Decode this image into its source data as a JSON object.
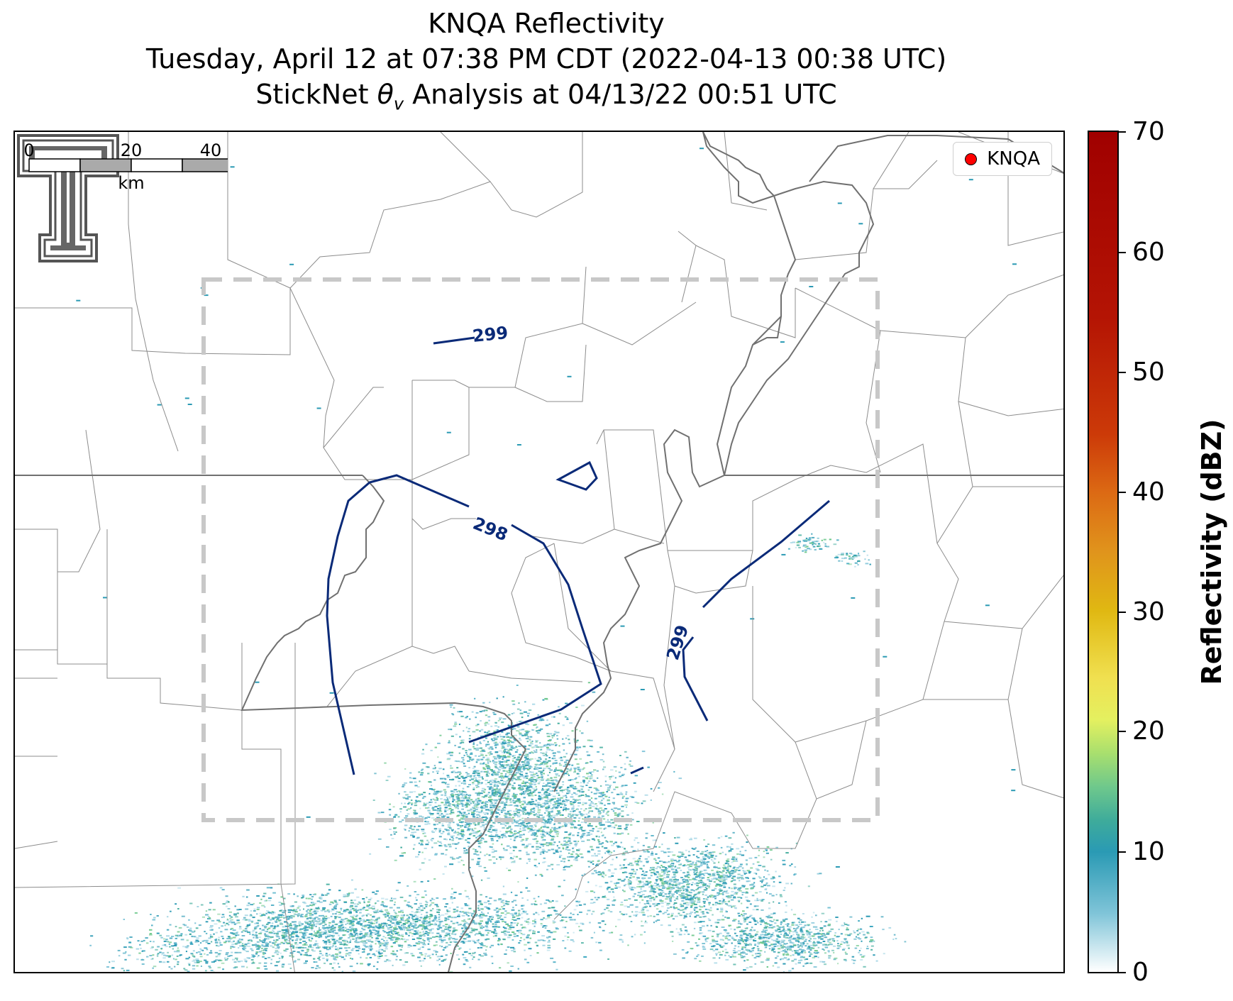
{
  "title": {
    "line1": "KNQA Reflectivity",
    "line2": "Tuesday, April 12 at 07:38 PM CDT (2022-04-13 00:38 UTC)",
    "line3_prefix": "StickNet ",
    "line3_symbol": "θ",
    "line3_subscript": "v",
    "line3_suffix": " Analysis at 04/13/22 00:51 UTC"
  },
  "legend": {
    "label": "KNQA",
    "marker_color": "#ff0000"
  },
  "contours": {
    "color": "#0a2a78",
    "labels": [
      "299",
      "298",
      "299"
    ]
  },
  "analysis_box": {
    "style": "dashed",
    "color": "#c8c8c8"
  },
  "scale_bar": {
    "ticks": [
      "0",
      "20",
      "40"
    ],
    "unit": "km"
  },
  "colorbar": {
    "title": "Reflectivity (dBZ)",
    "min": 0,
    "max": 70,
    "ticks": [
      "0",
      "10",
      "20",
      "30",
      "40",
      "50",
      "60",
      "70"
    ]
  },
  "logo": {
    "name": "texas-tech-double-t-logo"
  }
}
